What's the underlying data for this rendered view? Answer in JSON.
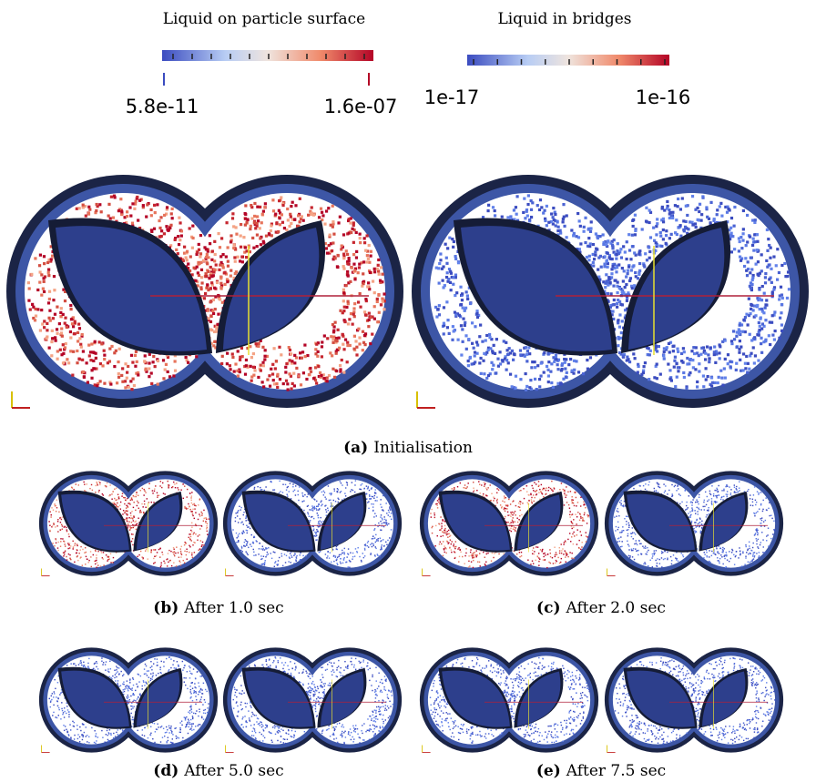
{
  "colorbars": [
    {
      "title": "Liquid on particle surface",
      "min_label": "5.8e-11",
      "max_label": "1.6e-07"
    },
    {
      "title": "Liquid in bridges",
      "min_label": "1e-17",
      "max_label": "1e-16"
    }
  ],
  "subfigures": [
    {
      "label": "(a)",
      "caption": "Initialisation"
    },
    {
      "label": "(b)",
      "caption": "After 1.0 sec"
    },
    {
      "label": "(c)",
      "caption": "After 2.0 sec"
    },
    {
      "label": "(d)",
      "caption": "After 5.0 sec"
    },
    {
      "label": "(e)",
      "caption": "After 7.5 sec"
    }
  ]
}
